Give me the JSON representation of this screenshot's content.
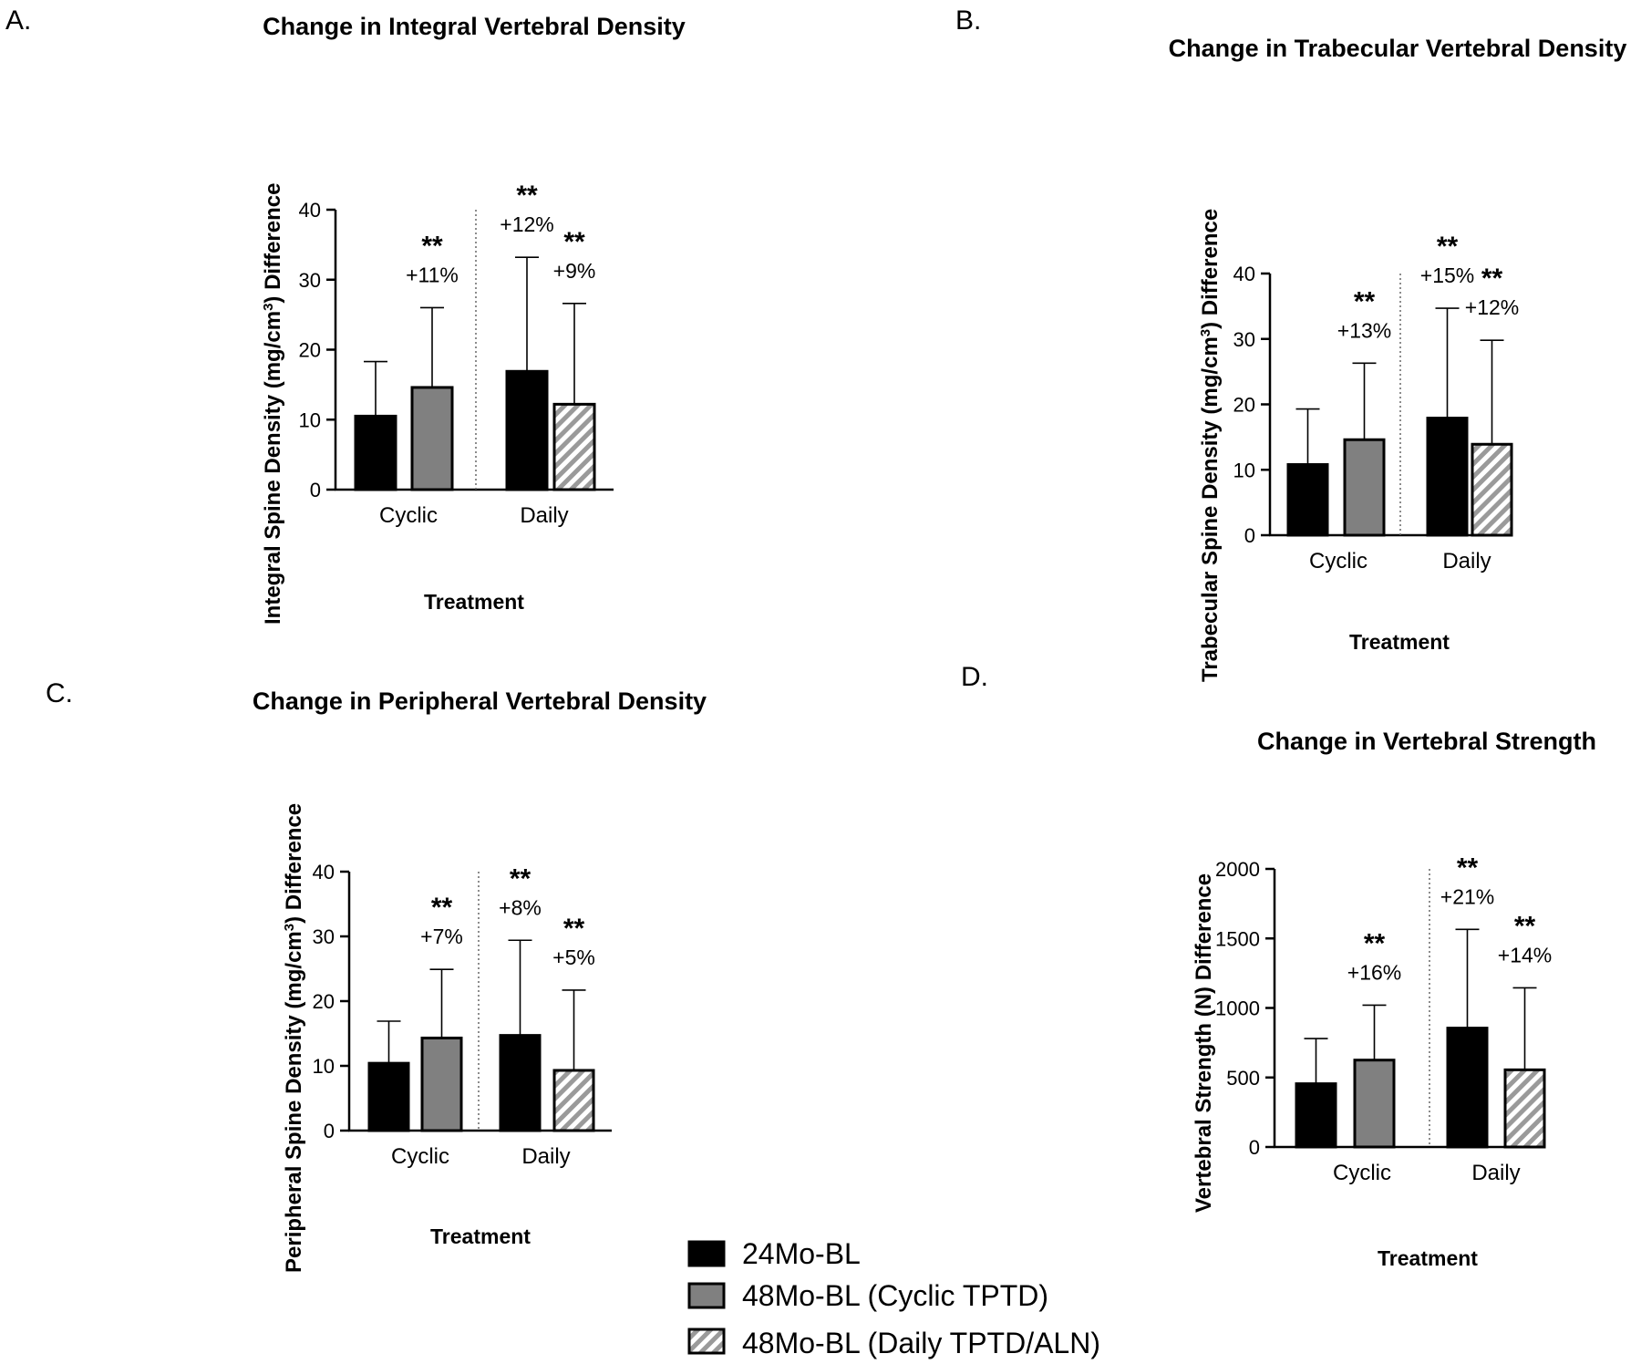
{
  "colors": {
    "series_24mo": "#000000",
    "series_cyclic": "#808080",
    "hatch": "#9a9a9a"
  },
  "legend": [
    {
      "label": "24Mo-BL",
      "style": "solid-black"
    },
    {
      "label": "48Mo-BL (Cyclic TPTD)",
      "style": "solid-gray"
    },
    {
      "label": "48Mo-BL (Daily TPTD/ALN)",
      "style": "hatched"
    }
  ],
  "chart_data": [
    {
      "type": "bar",
      "panel": "A.",
      "title": "Change in Integral Vertebral Density",
      "ylabel_main": "Integral Spine Density (mg/cm",
      "ylabel_sup": "3",
      "ylabel_tail": ")  Difference",
      "xlabel": "Treatment",
      "categories": [
        "Cyclic",
        "Daily"
      ],
      "ylim": [
        0,
        40
      ],
      "yticks": [
        "0",
        "10",
        "20",
        "30",
        "40"
      ],
      "bars": [
        {
          "group": "Cyclic",
          "series": "24Mo-BL",
          "value": 10.5,
          "error": 18.3,
          "stars": "",
          "pct": ""
        },
        {
          "group": "Cyclic",
          "series": "48Mo-BL (Cyclic TPTD)",
          "value": 14.6,
          "error": 26.0,
          "stars": "**",
          "pct": "+11%"
        },
        {
          "group": "Daily",
          "series": "24Mo-BL",
          "value": 16.9,
          "error": 33.2,
          "stars": "**",
          "pct": "+12%"
        },
        {
          "group": "Daily",
          "series": "48Mo-BL (Daily TPTD/ALN)",
          "value": 12.2,
          "error": 26.6,
          "stars": "**",
          "pct": "+9%"
        }
      ]
    },
    {
      "type": "bar",
      "panel": "B.",
      "title": "Change in Trabecular Vertebral Density",
      "ylabel_main": "Trabecular Spine Density (mg/cm",
      "ylabel_sup": "3",
      "ylabel_tail": ")  Difference",
      "xlabel": "Treatment",
      "categories": [
        "Cyclic",
        "Daily"
      ],
      "ylim": [
        0,
        40
      ],
      "yticks": [
        "0",
        "10",
        "20",
        "30",
        "40"
      ],
      "bars": [
        {
          "group": "Cyclic",
          "series": "24Mo-BL",
          "value": 10.8,
          "error": 19.3,
          "stars": "",
          "pct": ""
        },
        {
          "group": "Cyclic",
          "series": "48Mo-BL (Cyclic TPTD)",
          "value": 14.6,
          "error": 26.3,
          "stars": "**",
          "pct": "+13%"
        },
        {
          "group": "Daily",
          "series": "24Mo-BL",
          "value": 17.9,
          "error": 34.7,
          "stars": "**",
          "pct": "+15%"
        },
        {
          "group": "Daily",
          "series": "48Mo-BL (Daily TPTD/ALN)",
          "value": 13.9,
          "error": 29.8,
          "stars": "**",
          "pct": "+12%"
        }
      ]
    },
    {
      "type": "bar",
      "panel": "C.",
      "title": "Change in Peripheral Vertebral Density",
      "ylabel_main": "Peripheral Spine Density (mg/cm",
      "ylabel_sup": "3",
      "ylabel_tail": ")  Difference",
      "xlabel": "Treatment",
      "categories": [
        "Cyclic",
        "Daily"
      ],
      "ylim": [
        0,
        40
      ],
      "yticks": [
        "0",
        "10",
        "20",
        "30",
        "40"
      ],
      "bars": [
        {
          "group": "Cyclic",
          "series": "24Mo-BL",
          "value": 10.4,
          "error": 16.9,
          "stars": "",
          "pct": ""
        },
        {
          "group": "Cyclic",
          "series": "48Mo-BL (Cyclic TPTD)",
          "value": 14.3,
          "error": 24.9,
          "stars": "**",
          "pct": "+7%"
        },
        {
          "group": "Daily",
          "series": "24Mo-BL",
          "value": 14.7,
          "error": 29.4,
          "stars": "**",
          "pct": "+8%"
        },
        {
          "group": "Daily",
          "series": "48Mo-BL (Daily TPTD/ALN)",
          "value": 9.3,
          "error": 21.7,
          "stars": "**",
          "pct": "+5%"
        }
      ]
    },
    {
      "type": "bar",
      "panel": "D.",
      "title": "Change in Vertebral Strength",
      "ylabel_main": "Vertebral Strength (N) Difference",
      "ylabel_sup": "",
      "ylabel_tail": "",
      "xlabel": "Treatment",
      "categories": [
        "Cyclic",
        "Daily"
      ],
      "ylim": [
        0,
        2000
      ],
      "yticks": [
        "0",
        "500",
        "1000",
        "1500",
        "2000"
      ],
      "bars": [
        {
          "group": "Cyclic",
          "series": "24Mo-BL",
          "value": 455,
          "error": 780,
          "stars": "",
          "pct": ""
        },
        {
          "group": "Cyclic",
          "series": "48Mo-BL (Cyclic TPTD)",
          "value": 625,
          "error": 1020,
          "stars": "**",
          "pct": "+16%"
        },
        {
          "group": "Daily",
          "series": "24Mo-BL",
          "value": 855,
          "error": 1565,
          "stars": "**",
          "pct": "+21%"
        },
        {
          "group": "Daily",
          "series": "48Mo-BL (Daily TPTD/ALN)",
          "value": 555,
          "error": 1145,
          "stars": "**",
          "pct": "+14%"
        }
      ]
    }
  ]
}
